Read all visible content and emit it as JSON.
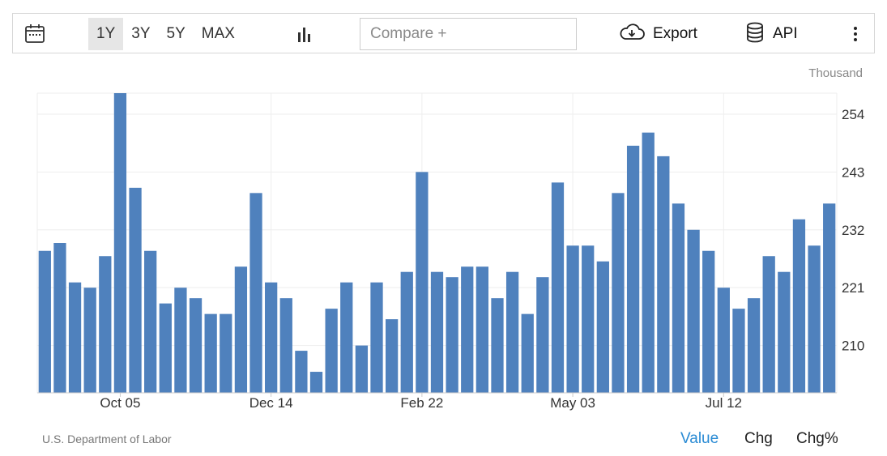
{
  "toolbar": {
    "ranges": [
      "1Y",
      "3Y",
      "5Y",
      "MAX"
    ],
    "active_range": "1Y",
    "compare_placeholder": "Compare +",
    "export_label": "Export",
    "api_label": "API",
    "icons": {
      "calendar": "calendar-icon",
      "chart_type": "bar-chart-icon",
      "export": "cloud-download-icon",
      "api": "database-icon",
      "more": "more-vertical-icon"
    }
  },
  "unit_label": "Thousand",
  "source_label": "U.S. Department of Labor",
  "modes": [
    "Value",
    "Chg",
    "Chg%"
  ],
  "active_mode": "Value",
  "colors": {
    "bar": "#4f81bd",
    "active_mode": "#2a8bd4"
  },
  "chart_data": {
    "type": "bar",
    "title": "",
    "xlabel": "",
    "ylabel": "Thousand",
    "ylim": [
      201,
      258
    ],
    "yticks": [
      210,
      221,
      232,
      243,
      254
    ],
    "x_tick_labels": [
      {
        "label": "Oct 05",
        "index": 5.5
      },
      {
        "label": "Dec 14",
        "index": 15.5
      },
      {
        "label": "Feb 22",
        "index": 25.5
      },
      {
        "label": "May 03",
        "index": 35.5
      },
      {
        "label": "Jul 12",
        "index": 45.5
      }
    ],
    "grid": true,
    "series": [
      {
        "values": [
          228,
          229.5,
          222,
          221,
          227,
          258,
          240,
          228,
          218,
          221,
          219,
          216,
          216,
          225,
          239,
          222,
          219,
          209,
          205,
          217,
          222,
          210,
          222,
          215,
          224,
          243,
          224,
          223,
          225,
          225,
          219,
          224,
          216,
          223,
          241,
          229,
          229,
          226,
          239,
          248,
          250.5,
          246,
          237,
          232,
          228,
          221,
          217,
          219,
          227,
          224,
          234,
          229,
          237
        ]
      }
    ]
  }
}
